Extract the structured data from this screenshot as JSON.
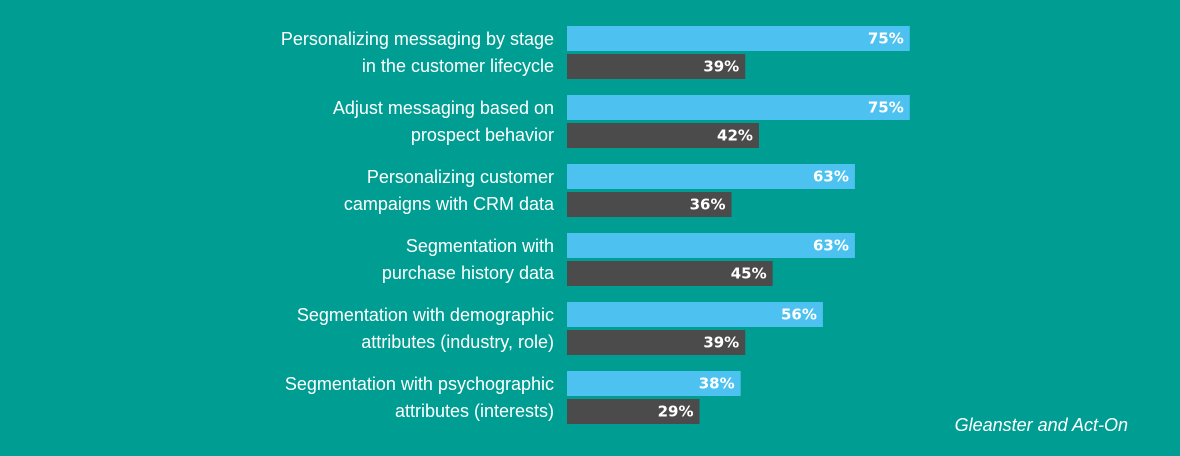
{
  "colors": {
    "background": "#009e92",
    "series_a": "#4dc2f0",
    "series_b": "#4b4b4b",
    "text": "#ffffff"
  },
  "chart_data": {
    "type": "bar",
    "orientation": "horizontal",
    "categories": [
      [
        "Personalizing messaging by stage",
        "in the customer lifecycle"
      ],
      [
        "Adjust messaging based on",
        "prospect behavior"
      ],
      [
        "Personalizing customer",
        "campaigns with CRM data"
      ],
      [
        "Segmentation with",
        "purchase history data"
      ],
      [
        "Segmentation with demographic",
        "attributes (industry, role)"
      ],
      [
        "Segmentation with psychographic",
        "attributes (interests)"
      ]
    ],
    "series": [
      {
        "values": [
          75,
          75,
          63,
          63,
          56,
          38
        ],
        "labels": [
          "75%",
          "75%",
          "63%",
          "63%",
          "56%",
          "38%"
        ]
      },
      {
        "values": [
          39,
          42,
          36,
          45,
          39,
          29
        ],
        "labels": [
          "39%",
          "42%",
          "36%",
          "45%",
          "39%",
          "29%"
        ]
      }
    ],
    "xlim": [
      0,
      100
    ],
    "grid": false,
    "legend": "none"
  },
  "source": "Gleanster and Act-On"
}
